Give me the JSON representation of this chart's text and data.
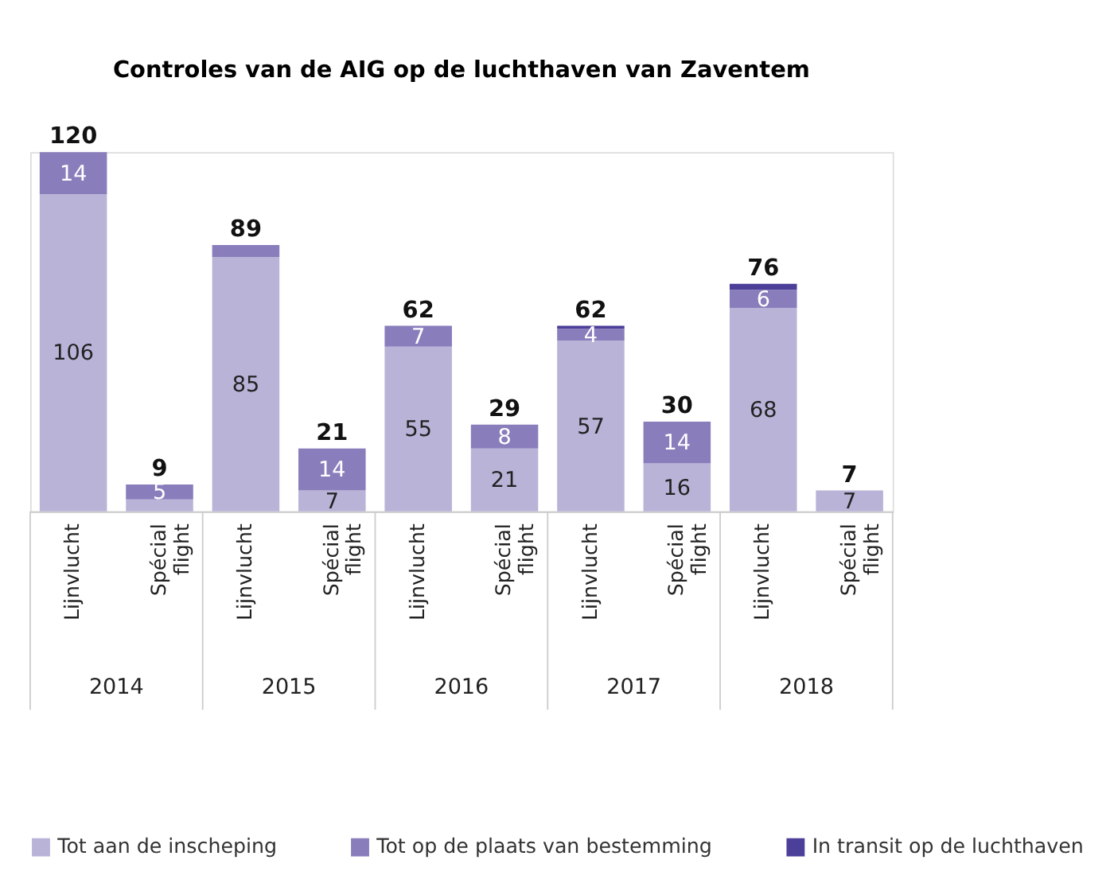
{
  "chart_data": {
    "type": "bar",
    "title": "Controles van de AIG op de luchthaven van Zaventem",
    "categories": [
      "Lijnvlucht",
      "Spécial flight",
      "Lijnvlucht",
      "Spécial flight",
      "Lijnvlucht",
      "Spécial flight",
      "Lijnvlucht",
      "Spécial flight",
      "Lijnvlucht",
      "Spécial flight"
    ],
    "stacked": true,
    "series": [
      {
        "name": "Tot aan de inscheping",
        "color": "#b9b3d8",
        "values": [
          106,
          4,
          85,
          7,
          55,
          21,
          57,
          16,
          68,
          7
        ],
        "value_labels": [
          "106",
          null,
          "85",
          "7",
          "55",
          "21",
          "57",
          "16",
          "68",
          "7"
        ]
      },
      {
        "name": "Tot op de plaats van bestemming",
        "color": "#8a7dbb",
        "values": [
          14,
          5,
          4,
          14,
          7,
          8,
          4,
          14,
          6,
          0
        ],
        "value_labels": [
          "14",
          "5",
          null,
          "14",
          "7",
          "8",
          "4",
          "14",
          "6",
          null
        ]
      },
      {
        "name": "In transit op de luchthaven",
        "color": "#4b3f99",
        "values": [
          0,
          0,
          0,
          0,
          0,
          0,
          1,
          0,
          2,
          0
        ],
        "value_labels": [
          null,
          null,
          null,
          null,
          null,
          null,
          null,
          null,
          null,
          null
        ]
      }
    ],
    "totals": [
      "120",
      "9",
      "89",
      "21",
      "62",
      "29",
      "62",
      "30",
      "76",
      "7"
    ],
    "annotations": [
      "2014",
      "2015",
      "2016",
      "2017",
      "2018"
    ],
    "legend": "bottom",
    "grid": false
  }
}
